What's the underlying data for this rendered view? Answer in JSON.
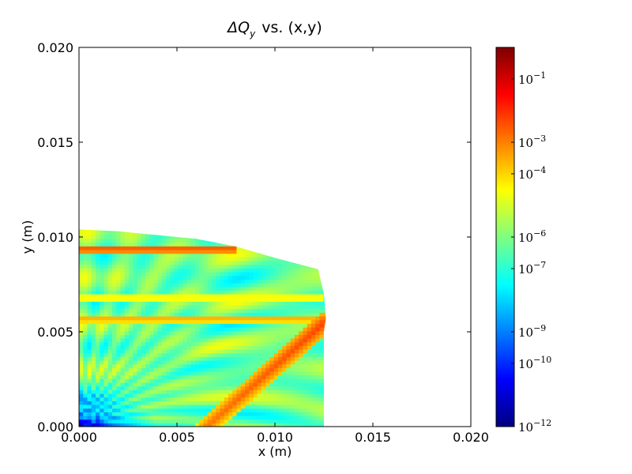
{
  "chart_data": {
    "type": "heatmap",
    "title_prefix": "ΔQ",
    "title_subscript": "y",
    "title_suffix": "vs. (x,y)",
    "xlabel": "x (m)",
    "ylabel": "y (m)",
    "xlim": [
      0.0,
      0.02
    ],
    "ylim": [
      0.0,
      0.02
    ],
    "x_ticks": [
      0.0,
      0.005,
      0.01,
      0.015,
      0.02
    ],
    "y_ticks": [
      0.0,
      0.005,
      0.01,
      0.015,
      0.02
    ],
    "x_tick_labels": [
      "0.000",
      "0.005",
      "0.010",
      "0.015",
      "0.020"
    ],
    "y_tick_labels": [
      "0.000",
      "0.005",
      "0.010",
      "0.015",
      "0.020"
    ],
    "colormap": "jet",
    "colorbar": {
      "scale": "log",
      "range": [
        1e-12,
        1
      ],
      "tick_values": [
        1e-12,
        1e-10,
        1e-09,
        1e-07,
        1e-06,
        0.0001,
        0.001,
        0.1
      ],
      "tick_labels": [
        {
          "base": "10",
          "exp": "−12"
        },
        {
          "base": "10",
          "exp": "−10"
        },
        {
          "base": "10",
          "exp": "−9"
        },
        {
          "base": "10",
          "exp": "−7"
        },
        {
          "base": "10",
          "exp": "−6"
        },
        {
          "base": "10",
          "exp": "−4"
        },
        {
          "base": "10",
          "exp": "−3"
        },
        {
          "base": "10",
          "exp": "−1"
        }
      ]
    },
    "region_boundary": [
      [
        0.0,
        0.0104
      ],
      [
        0.002,
        0.0103
      ],
      [
        0.004,
        0.0101
      ],
      [
        0.006,
        0.0099
      ],
      [
        0.008,
        0.0095
      ],
      [
        0.01,
        0.0089
      ],
      [
        0.0122,
        0.0083
      ],
      [
        0.0125,
        0.007
      ],
      [
        0.0126,
        0.0057
      ],
      [
        0.0125,
        0.005
      ],
      [
        0.0125,
        0.0
      ]
    ],
    "high_bands": [
      {
        "y": 0.0094,
        "x_end": 0.008,
        "level": -2.5
      },
      {
        "y": 0.0057,
        "x_end": 0.0125,
        "level": -3.5
      },
      {
        "y": 0.0068,
        "x_end": 0.0125,
        "level": -4.2
      }
    ],
    "resonance_streak": {
      "from": [
        0.0065,
        0.0
      ],
      "to": [
        0.0125,
        0.0055
      ],
      "level": -2.8
    },
    "low_corner": {
      "x": 0.0,
      "y": 0.0,
      "level": -11
    }
  }
}
